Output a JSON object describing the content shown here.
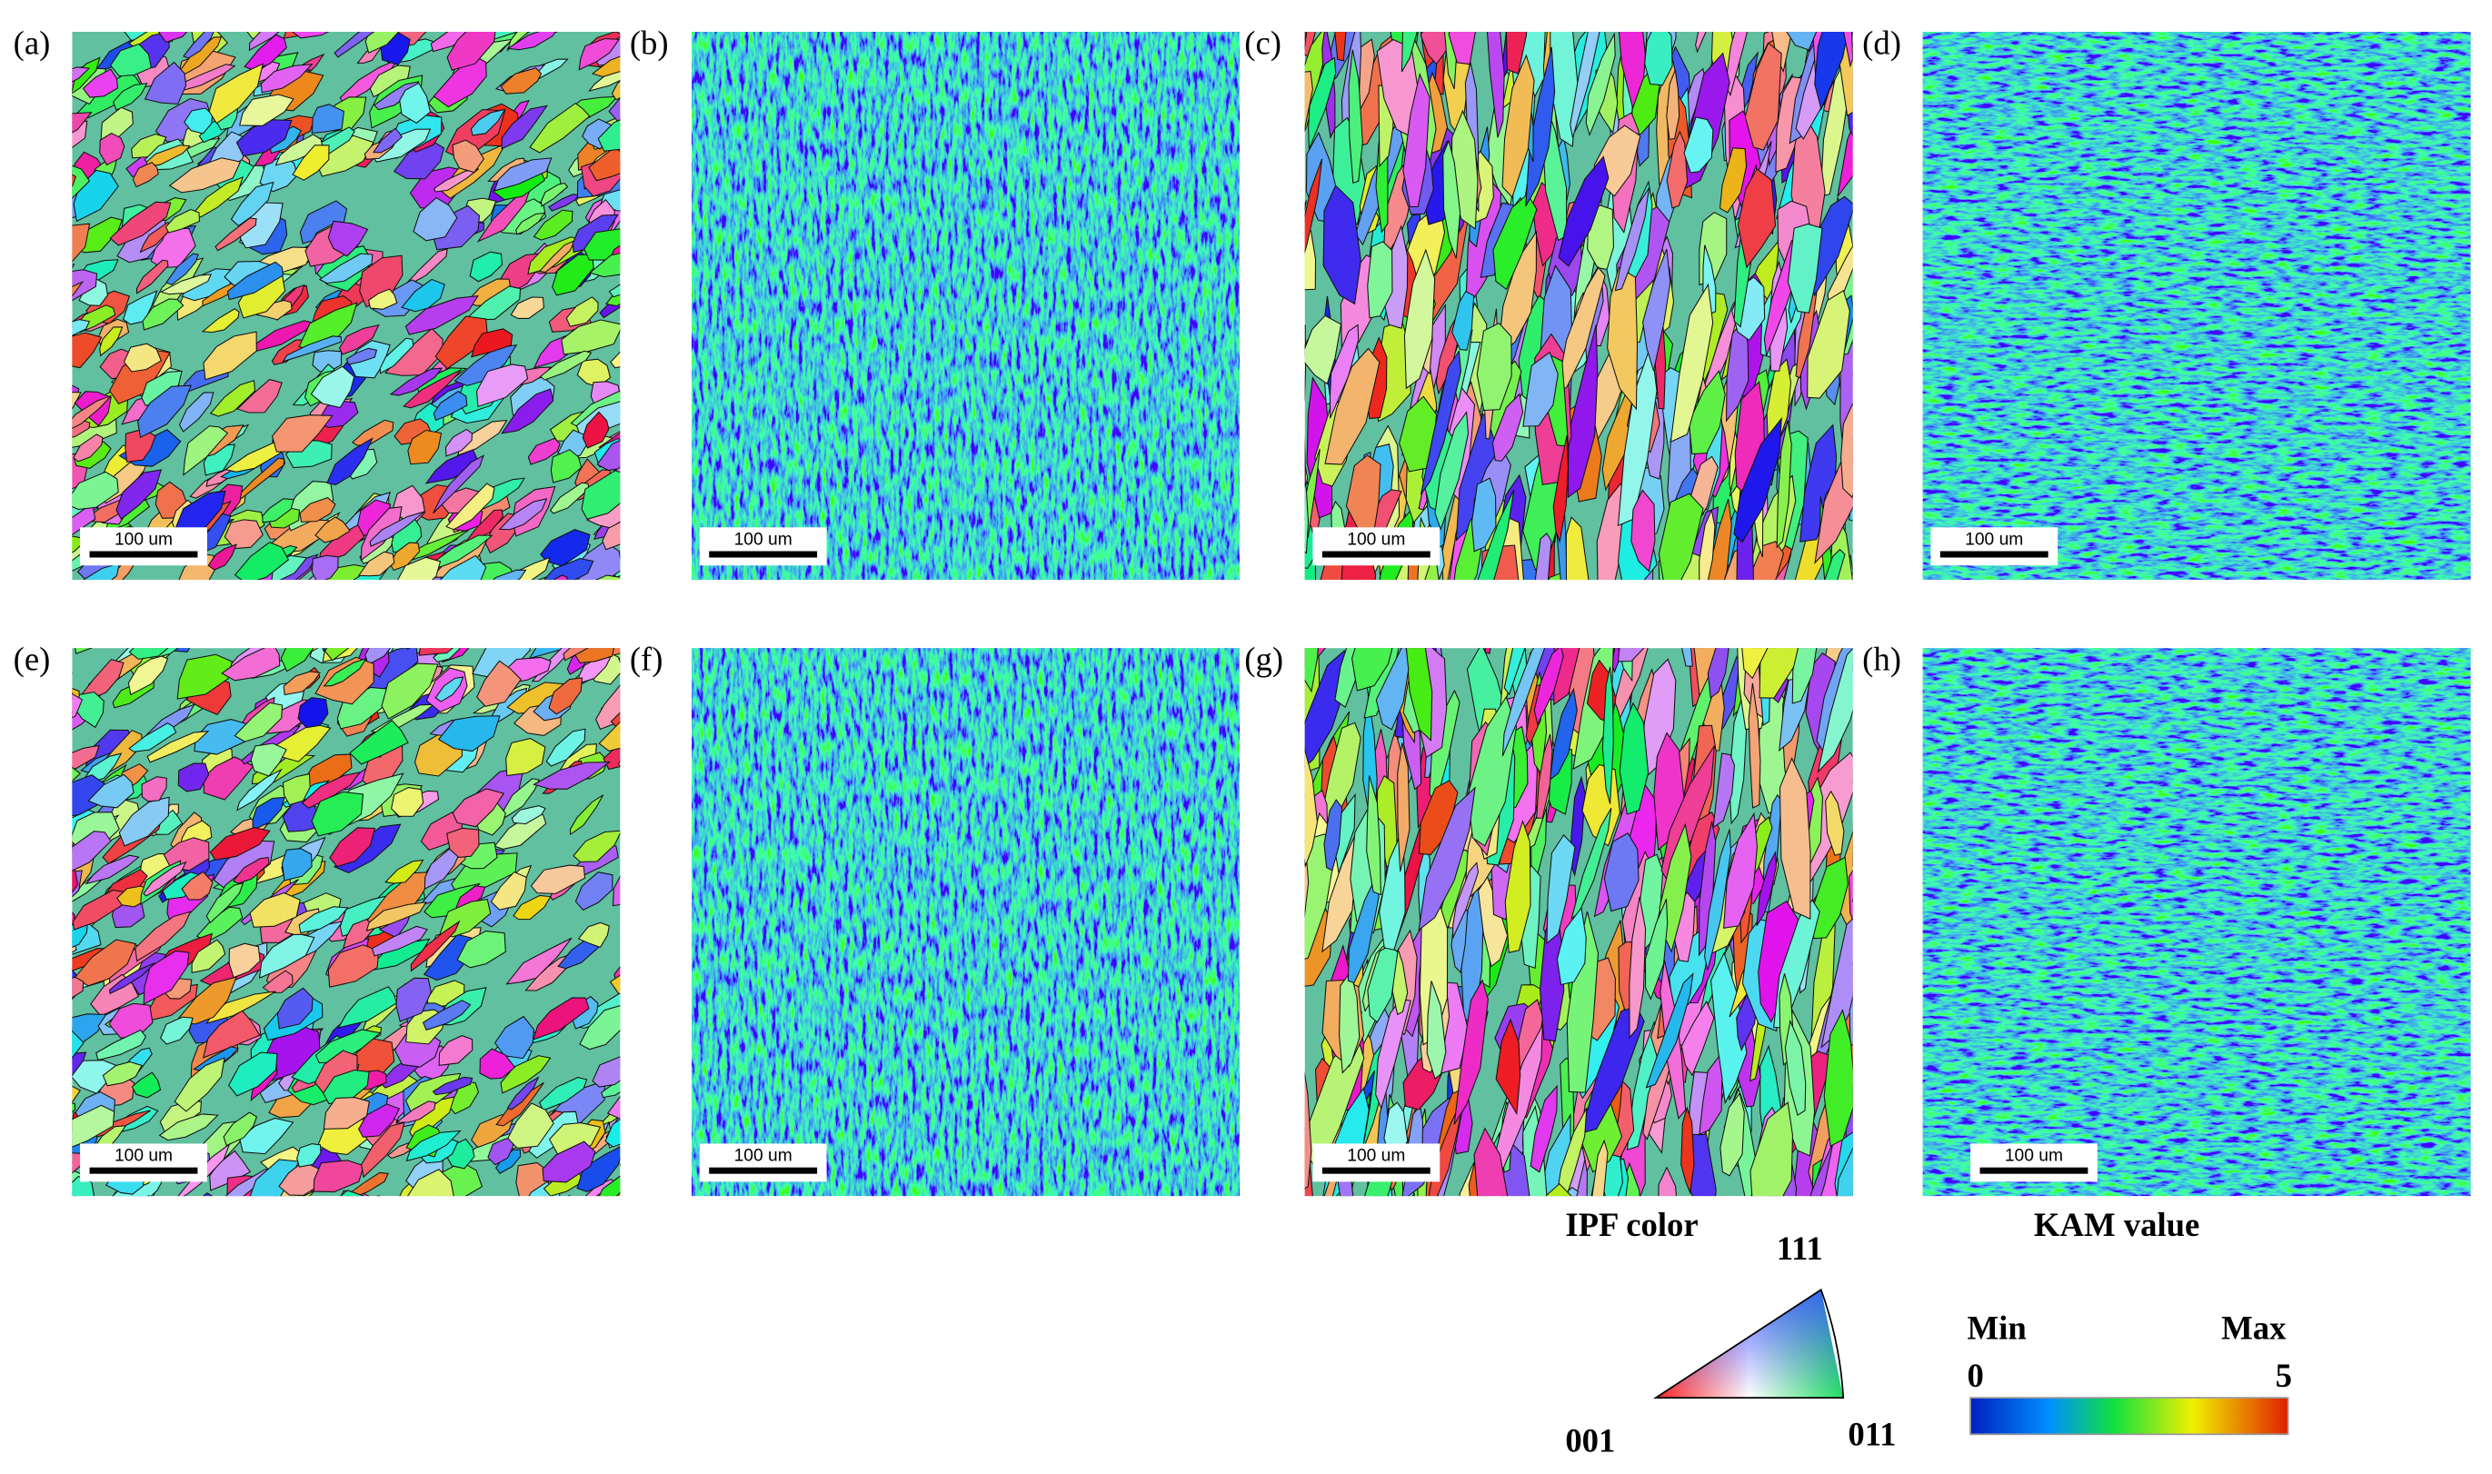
{
  "panels": [
    {
      "label": "(a)",
      "scale_bar": "100 um"
    },
    {
      "label": "(b)",
      "scale_bar": "100 um"
    },
    {
      "label": "(c)",
      "scale_bar": "100 um"
    },
    {
      "label": "(d)",
      "scale_bar": "100 um"
    },
    {
      "label": "(e)",
      "scale_bar": "100 um"
    },
    {
      "label": "(f)",
      "scale_bar": "100 um"
    },
    {
      "label": "(g)",
      "scale_bar": "100 um"
    },
    {
      "label": "(h)",
      "scale_bar": "100 um"
    }
  ],
  "ipf_legend": {
    "title": "IPF color",
    "top": "111",
    "left": "001",
    "right": "011"
  },
  "kam_legend": {
    "title": "KAM value",
    "min_label": "Min",
    "max_label": "Max",
    "min": 0,
    "max": 5
  }
}
